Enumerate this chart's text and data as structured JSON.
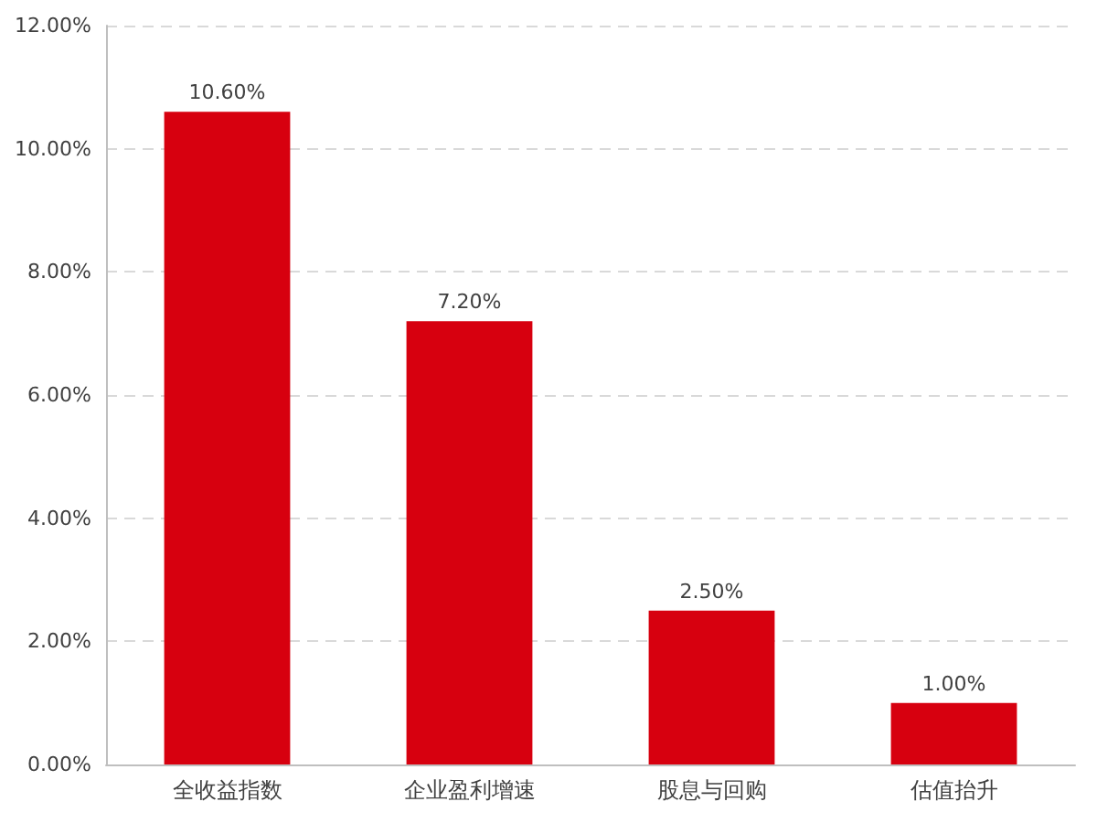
{
  "chart_data": {
    "type": "bar",
    "categories": [
      "全收益指数",
      "企业盈利增速",
      "股息与回购",
      "估值抬升"
    ],
    "values": [
      10.6,
      7.2,
      2.5,
      1.0
    ],
    "color": "#d7000f",
    "value_labels": [
      "10.60%",
      "7.20%",
      "2.50%",
      "1.00%"
    ],
    "ylim": [
      0,
      12
    ],
    "yticks": [
      {
        "value": 0,
        "label": "0.00%"
      },
      {
        "value": 2,
        "label": "2.00%"
      },
      {
        "value": 4,
        "label": "4.00%"
      },
      {
        "value": 6,
        "label": "6.00%"
      },
      {
        "value": 8,
        "label": "8.00%"
      },
      {
        "value": 10,
        "label": "10.00%"
      },
      {
        "value": 12,
        "label": "12.00%"
      }
    ],
    "grid": "y"
  }
}
